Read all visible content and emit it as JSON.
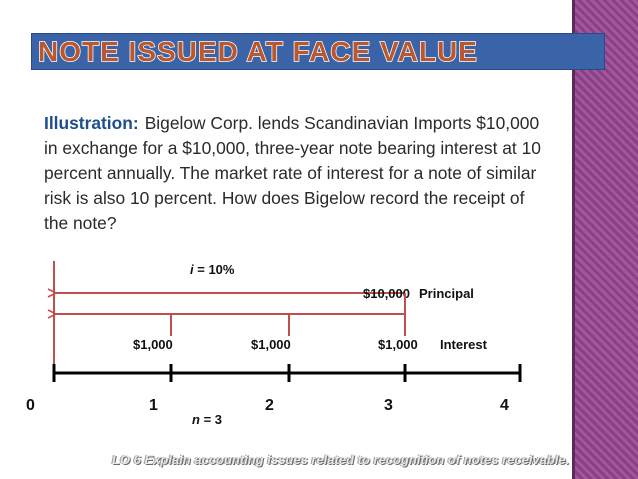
{
  "title": "NOTE ISSUED AT FACE VALUE",
  "illustration": {
    "label": "Illustration:",
    "lines": [
      "Bigelow Corp. lends Scandinavian Imports $10,000",
      "in exchange for a $10,000, three-year note bearing interest at 10",
      "percent annually.  The market rate of interest for a note of similar",
      "risk is also 10 percent.  How does Bigelow record the receipt of",
      "the note?"
    ]
  },
  "timeline": {
    "rate_symbol": "i",
    "rate_text": " = 10%",
    "periods_symbol": "n",
    "periods_text": " = 3",
    "principal_amount": "$10,000",
    "principal_label": "Principal",
    "interest_amounts": [
      "$1,000",
      "$1,000",
      "$1,000"
    ],
    "interest_label": "Interest",
    "ticks": [
      "0",
      "1",
      "2",
      "3",
      "4"
    ]
  },
  "footer": "LO 6  Explain accounting issues related to recognition of notes receivable.",
  "colors": {
    "title_bar": "#3a63a8",
    "title_text": "#b9572e",
    "accent_band": "#8a3f86",
    "arrow": "#c0504d",
    "illustration_label": "#1f4e8c"
  }
}
